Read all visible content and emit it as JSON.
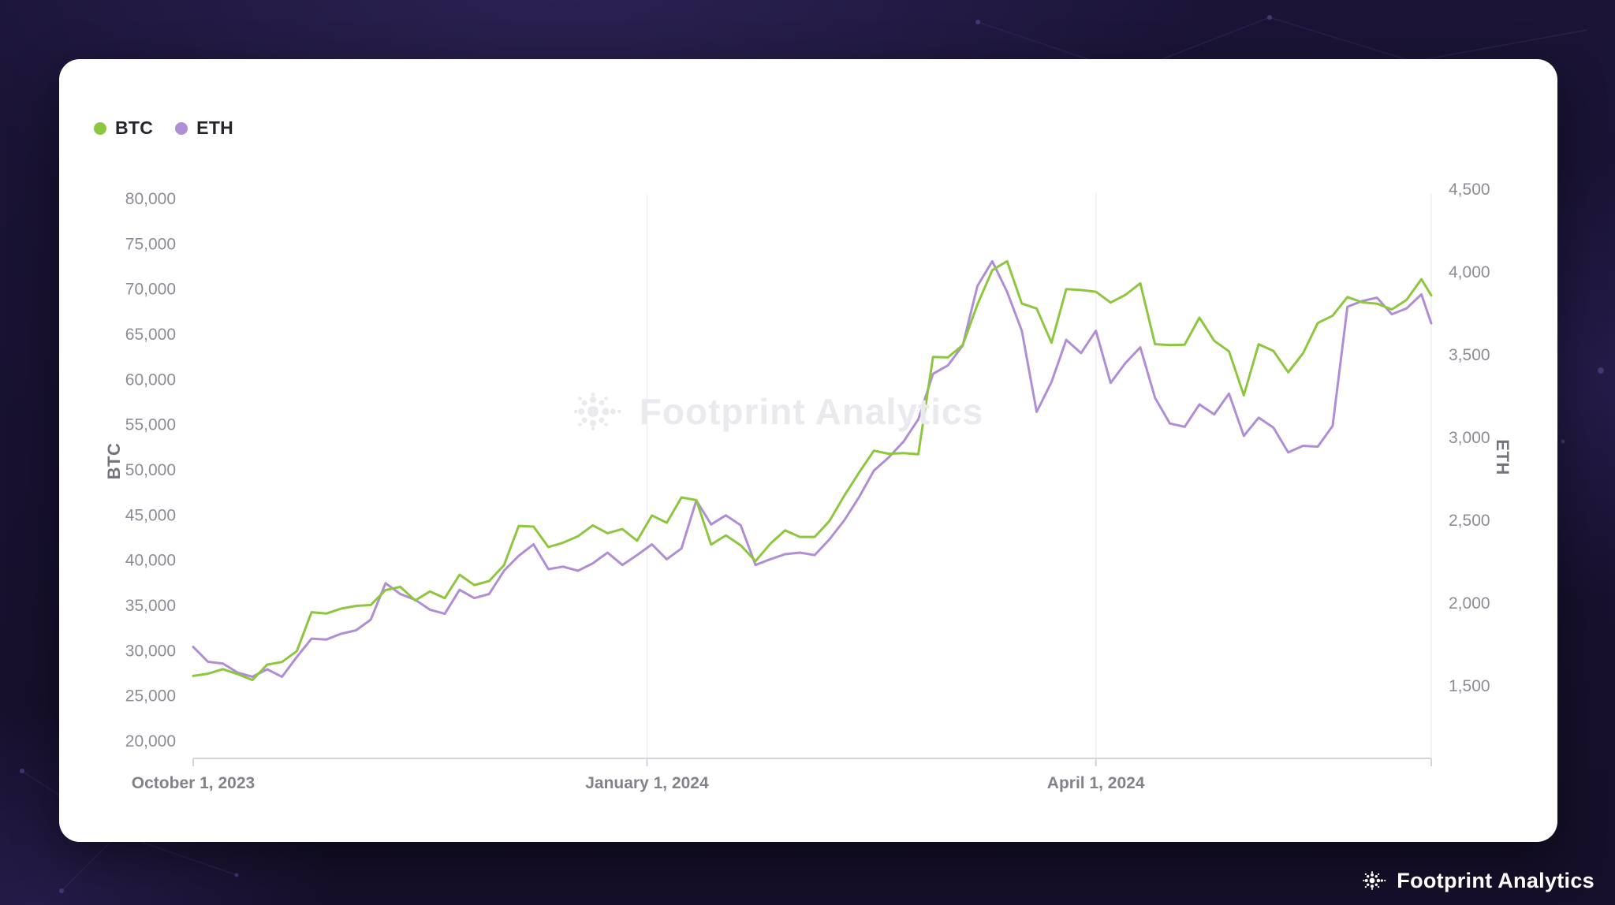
{
  "watermark": {
    "text": "Footprint Analytics"
  },
  "footer": {
    "brand": "Footprint Analytics"
  },
  "legend": {
    "position": "top-left",
    "items": [
      {
        "label": "BTC",
        "color": "#8dc63f"
      },
      {
        "label": "ETH",
        "color": "#b08ed6"
      }
    ]
  },
  "chart_data": {
    "type": "line",
    "title": "",
    "grid": "vertical-date-lines-only",
    "x": [
      "2023-10-01",
      "2023-10-04",
      "2023-10-07",
      "2023-10-10",
      "2023-10-13",
      "2023-10-16",
      "2023-10-19",
      "2023-10-22",
      "2023-10-25",
      "2023-10-28",
      "2023-10-31",
      "2023-11-03",
      "2023-11-06",
      "2023-11-09",
      "2023-11-12",
      "2023-11-15",
      "2023-11-18",
      "2023-11-21",
      "2023-11-24",
      "2023-11-27",
      "2023-11-30",
      "2023-12-03",
      "2023-12-06",
      "2023-12-09",
      "2023-12-12",
      "2023-12-15",
      "2023-12-18",
      "2023-12-21",
      "2023-12-24",
      "2023-12-27",
      "2023-12-30",
      "2024-01-02",
      "2024-01-05",
      "2024-01-08",
      "2024-01-11",
      "2024-01-14",
      "2024-01-17",
      "2024-01-20",
      "2024-01-23",
      "2024-01-26",
      "2024-01-29",
      "2024-02-01",
      "2024-02-04",
      "2024-02-07",
      "2024-02-10",
      "2024-02-13",
      "2024-02-16",
      "2024-02-19",
      "2024-02-22",
      "2024-02-25",
      "2024-02-28",
      "2024-03-02",
      "2024-03-05",
      "2024-03-08",
      "2024-03-11",
      "2024-03-14",
      "2024-03-17",
      "2024-03-20",
      "2024-03-23",
      "2024-03-26",
      "2024-03-29",
      "2024-04-01",
      "2024-04-04",
      "2024-04-07",
      "2024-04-10",
      "2024-04-13",
      "2024-04-16",
      "2024-04-19",
      "2024-04-22",
      "2024-04-25",
      "2024-04-28",
      "2024-05-01",
      "2024-05-04",
      "2024-05-07",
      "2024-05-10",
      "2024-05-13",
      "2024-05-16",
      "2024-05-19",
      "2024-05-22",
      "2024-05-25",
      "2024-05-28",
      "2024-05-31",
      "2024-06-03",
      "2024-06-06",
      "2024-06-08"
    ],
    "series": [
      {
        "name": "BTC",
        "yaxis": "left",
        "color": "#8dc63f",
        "values": [
          27200,
          27450,
          27950,
          27400,
          26750,
          28450,
          28750,
          29950,
          34250,
          34100,
          34650,
          34950,
          35050,
          36700,
          37050,
          35550,
          36550,
          35800,
          38400,
          37250,
          37700,
          39450,
          43800,
          43720,
          41450,
          41940,
          42650,
          43860,
          42990,
          43450,
          42150,
          44950,
          44150,
          46950,
          46650,
          41730,
          42750,
          41650,
          39900,
          41820,
          43300,
          42580,
          42580,
          44350,
          47150,
          49700,
          52120,
          51780,
          51850,
          51730,
          62500,
          62440,
          63800,
          68300,
          72080,
          73080,
          68390,
          67840,
          64060,
          69990,
          69890,
          69700,
          68510,
          69360,
          70630,
          63900,
          63800,
          63850,
          66840,
          64280,
          63110,
          58250,
          63890,
          63160,
          60790,
          62900,
          66250,
          67050,
          69120,
          68530,
          68380,
          67750,
          68800,
          71100,
          69300
        ]
      },
      {
        "name": "ETH",
        "yaxis": "right",
        "color": "#b08ed6",
        "values": [
          1735,
          1645,
          1635,
          1580,
          1555,
          1600,
          1555,
          1675,
          1785,
          1780,
          1815,
          1835,
          1900,
          2120,
          2055,
          2020,
          1960,
          1935,
          2080,
          2030,
          2055,
          2195,
          2285,
          2355,
          2205,
          2220,
          2195,
          2240,
          2305,
          2230,
          2290,
          2355,
          2265,
          2330,
          2620,
          2475,
          2530,
          2470,
          2230,
          2265,
          2295,
          2305,
          2290,
          2385,
          2500,
          2640,
          2800,
          2880,
          2975,
          3110,
          3385,
          3435,
          3555,
          3915,
          4065,
          3880,
          3645,
          3155,
          3335,
          3590,
          3510,
          3645,
          3330,
          3450,
          3545,
          3240,
          3085,
          3065,
          3200,
          3140,
          3265,
          3010,
          3120,
          3060,
          2910,
          2950,
          2945,
          3070,
          3790,
          3825,
          3845,
          3745,
          3780,
          3865,
          3690
        ]
      }
    ],
    "left_axis": {
      "label": "BTC",
      "min": 20000,
      "max": 80000,
      "tick_step": 5000,
      "ticks": [
        20000,
        25000,
        30000,
        35000,
        40000,
        45000,
        50000,
        55000,
        60000,
        65000,
        70000,
        75000,
        80000
      ]
    },
    "right_axis": {
      "label": "ETH",
      "min": 1500,
      "max": 4500,
      "tick_step": 500,
      "ticks": [
        1500,
        2000,
        2500,
        3000,
        3500,
        4000,
        4500
      ]
    },
    "x_ticks": [
      {
        "x": "2023-10-01",
        "label": "October 1, 2023"
      },
      {
        "x": "2024-01-01",
        "label": "January 1, 2024"
      },
      {
        "x": "2024-04-01",
        "label": "April 1, 2024"
      }
    ]
  }
}
